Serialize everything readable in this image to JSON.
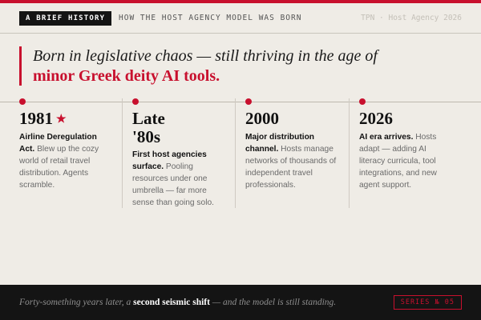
{
  "header": {
    "badge": "A BRIEF HISTORY",
    "title": "HOW THE HOST AGENCY MODEL WAS BORN",
    "meta": "TPN · Host Agency 2026"
  },
  "quote": {
    "lead": "Born in legislative chaos — still thriving in the age of",
    "accent": "minor Greek deity AI tools."
  },
  "timeline": {
    "star_glyph": "★",
    "items": [
      {
        "year": "1981",
        "highlight": "Airline Deregulation Act.",
        "text": "Blew up the cozy world of retail travel distribution. Agents scramble."
      },
      {
        "year_line1": "Late",
        "year_line2": "'80s",
        "highlight": "First host agencies surface.",
        "text": "Pooling resources under one umbrella — far more sense than going solo."
      },
      {
        "year": "2000",
        "highlight": "Major distribution channel.",
        "text": "Hosts manage networks of thousands of independent travel professionals."
      },
      {
        "year": "2026",
        "highlight": "AI era arrives.",
        "text": "Hosts adapt — adding AI literacy curricula, tool integrations, and new agent support."
      }
    ]
  },
  "footer": {
    "text_lead": "Forty-something years later, a",
    "text_bold": "second seismic shift",
    "text_tail": "— and the model is still standing.",
    "series_tag": "SERIES № 05"
  },
  "colors": {
    "accent": "#c8102e",
    "background": "#efece6",
    "ink": "#141414"
  }
}
